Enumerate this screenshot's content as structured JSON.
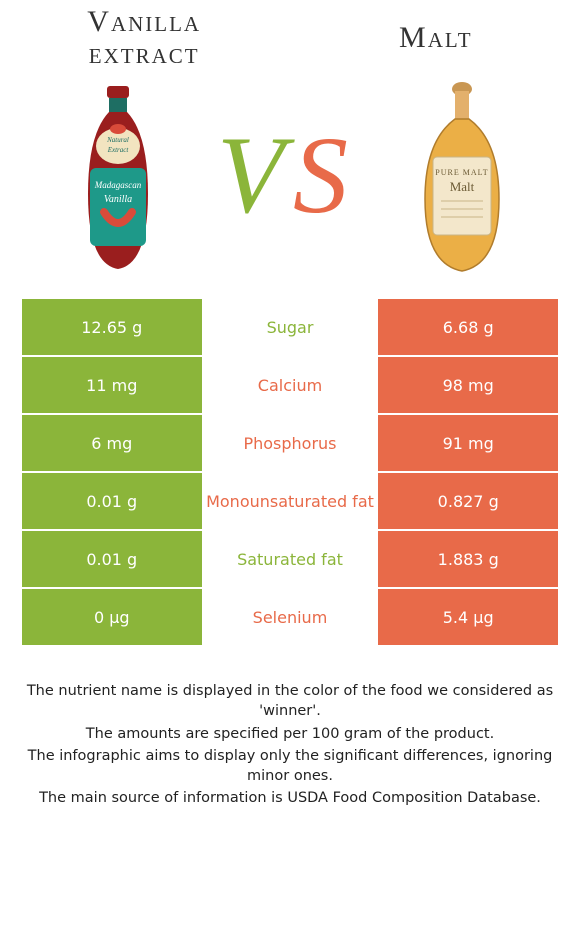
{
  "colors": {
    "left_bg": "#8BB53A",
    "right_bg": "#E86A49",
    "left_name": "green",
    "right_name": "orange"
  },
  "foods": {
    "left": {
      "title_line1": "Vanilla",
      "title_line2": "extract"
    },
    "right": {
      "title": "Malt"
    }
  },
  "vs_label": "VS",
  "rows": [
    {
      "left": "12.65 g",
      "label": "Sugar",
      "right": "6.68 g",
      "winner": "left"
    },
    {
      "left": "11 mg",
      "label": "Calcium",
      "right": "98 mg",
      "winner": "right"
    },
    {
      "left": "6 mg",
      "label": "Phosphorus",
      "right": "91 mg",
      "winner": "right"
    },
    {
      "left": "0.01 g",
      "label": "Monounsaturated fat",
      "right": "0.827 g",
      "winner": "right"
    },
    {
      "left": "0.01 g",
      "label": "Saturated fat",
      "right": "1.883 g",
      "winner": "left"
    },
    {
      "left": "0 µg",
      "label": "Selenium",
      "right": "5.4 µg",
      "winner": "right"
    }
  ],
  "footnotes": [
    "The nutrient name is displayed in the color of the food we considered as 'winner'.",
    "The amounts are specified per 100 gram of the product.",
    "The infographic aims to display only the significant differences, ignoring minor ones.",
    "The main source of information is USDA Food Composition Database."
  ]
}
